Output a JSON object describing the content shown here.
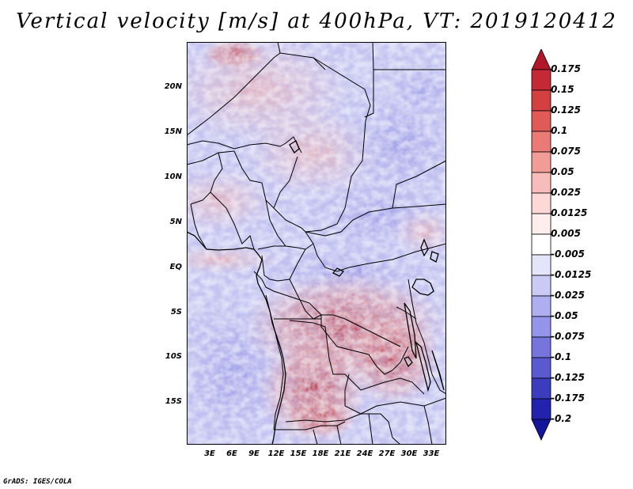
{
  "title": "Vertical velocity [m/s] at 400hPa, VT: 2019120412",
  "footer": "GrADS: IGES/COLA",
  "map": {
    "lat_labels": [
      "20N",
      "15N",
      "10N",
      "5N",
      "EQ",
      "5S",
      "10S",
      "15S"
    ],
    "lon_labels": [
      "3E",
      "6E",
      "9E",
      "12E",
      "15E",
      "18E",
      "21E",
      "24E",
      "27E",
      "30E",
      "33E"
    ],
    "lon_range": [
      0,
      35
    ],
    "lat_range": [
      -20,
      25
    ]
  },
  "legend": {
    "labels": [
      "0.175",
      "0.15",
      "0.125",
      "0.1",
      "0.075",
      "0.05",
      "0.025",
      "0.0125",
      "0.005",
      "-0.005",
      "-0.0125",
      "-0.025",
      "-0.05",
      "-0.075",
      "-0.1",
      "-0.125",
      "-0.175",
      "-0.2"
    ],
    "colors": [
      "#b0182a",
      "#c42a35",
      "#d43f42",
      "#e05a58",
      "#eb7a76",
      "#f29c98",
      "#f8bcba",
      "#fcd8d6",
      "#fdeeed",
      "#ffffff",
      "#e4e4fb",
      "#cacaf6",
      "#aeaef0",
      "#9494ea",
      "#7575dd",
      "#5959d0",
      "#3c3cbf",
      "#2222ad",
      "#15159a"
    ]
  }
}
